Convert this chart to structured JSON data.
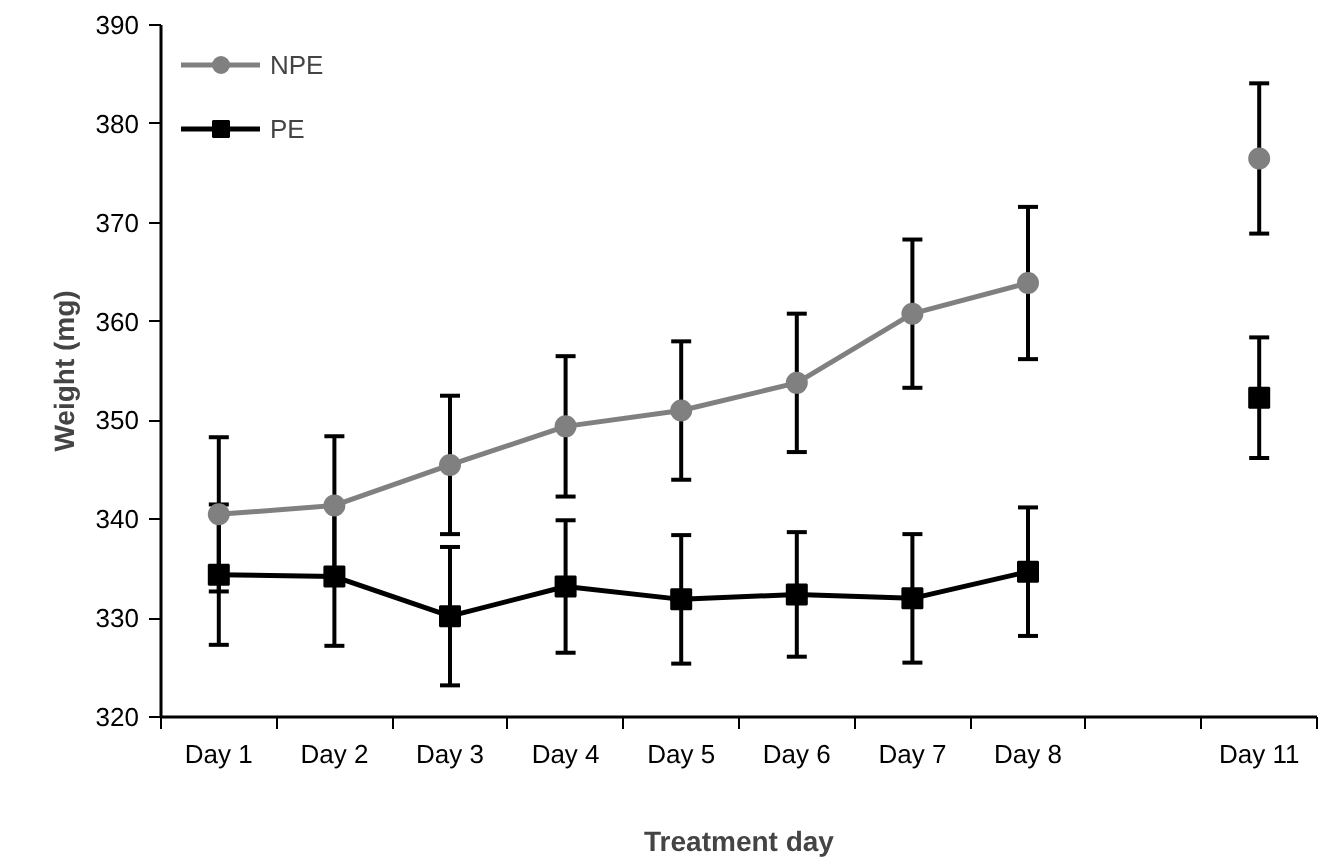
{
  "chart_data": {
    "type": "line",
    "xlabel": "Treatment day",
    "ylabel": "Weight (mg)",
    "categories": [
      "Day 1",
      "Day 2",
      "Day 3",
      "Day 4",
      "Day 5",
      "Day 6",
      "Day 7",
      "Day 8",
      null,
      "Day 11"
    ],
    "series": [
      {
        "name": "NPE",
        "color": "#808080",
        "marker": "circle",
        "values": [
          340.5,
          341.4,
          345.5,
          349.4,
          351.0,
          353.8,
          360.8,
          363.9,
          null,
          376.5
        ],
        "errors": [
          7.8,
          7,
          7,
          7.1,
          7,
          7,
          7.5,
          7.7,
          null,
          7.6
        ]
      },
      {
        "name": "PE",
        "color": "#000000",
        "marker": "square",
        "values": [
          334.4,
          334.2,
          330.2,
          333.2,
          331.9,
          332.4,
          332.0,
          334.7,
          null,
          352.3
        ],
        "errors": [
          7.1,
          7,
          7,
          6.7,
          6.5,
          6.3,
          6.5,
          6.5,
          null,
          6.1
        ]
      }
    ],
    "ylim": [
      320,
      390
    ],
    "yticks": [
      320,
      330,
      340,
      350,
      360,
      370,
      380,
      390
    ],
    "grid": false,
    "legend": "top left"
  }
}
